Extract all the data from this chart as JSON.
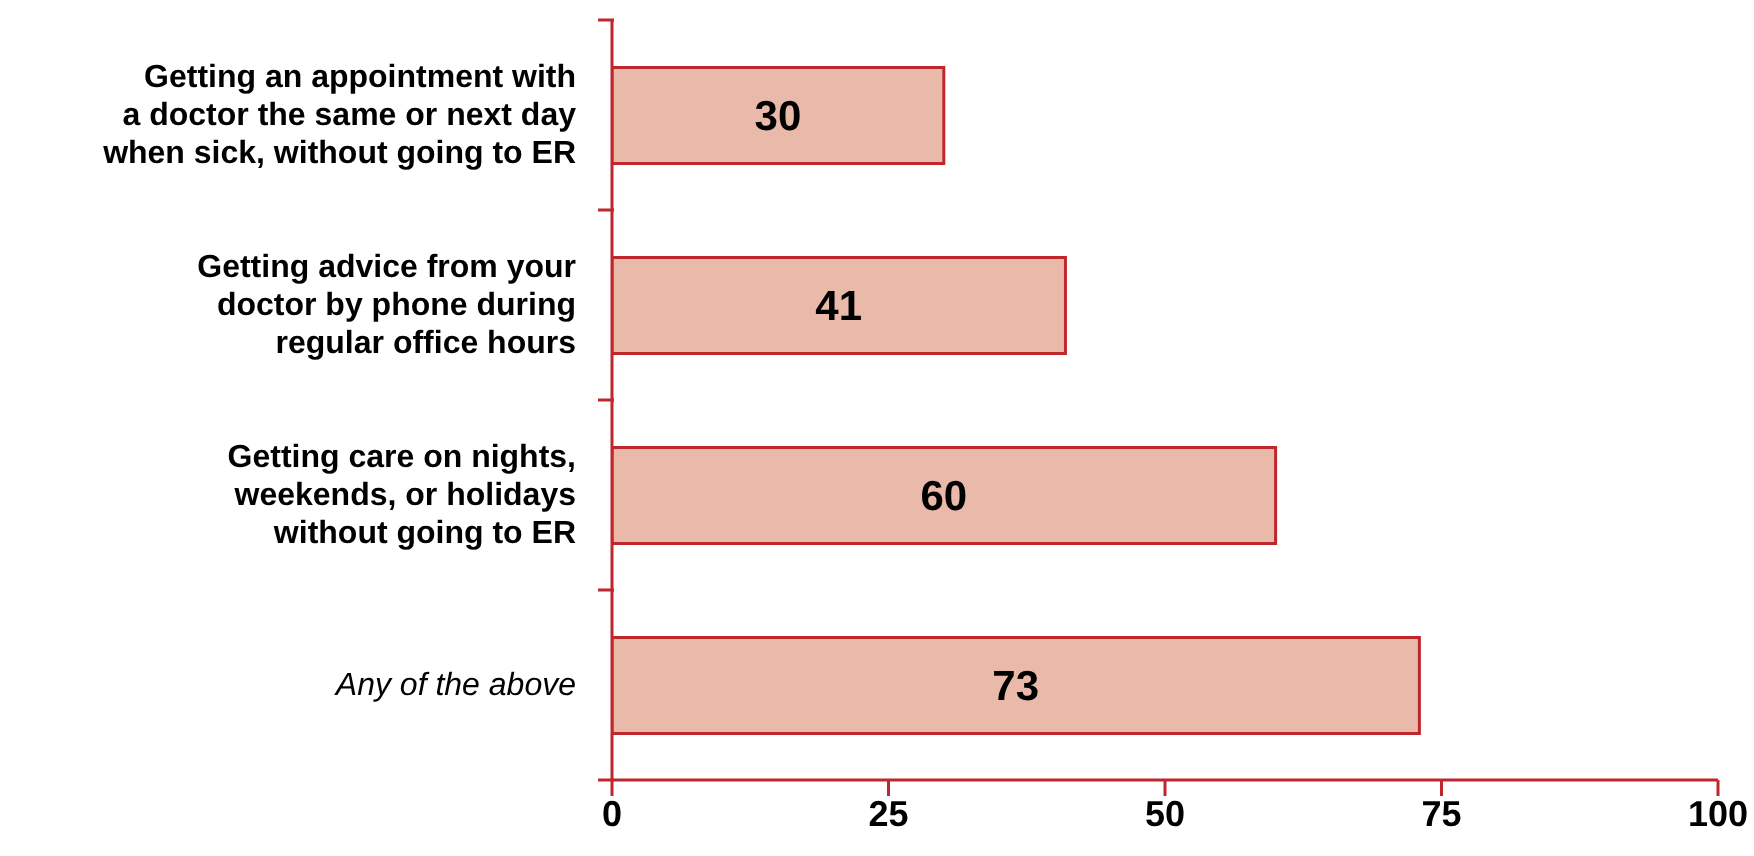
{
  "chart_data": {
    "type": "bar",
    "orientation": "horizontal",
    "categories": [
      "Getting an appointment with\na doctor the same or next day\nwhen sick, without going to ER",
      "Getting advice from your\ndoctor by phone during\nregular office hours",
      "Getting care on nights,\nweekends, or holidays\nwithout going to ER",
      "Any of the above"
    ],
    "values": [
      30,
      41,
      60,
      73
    ],
    "color": "#e9b9a9",
    "xlim": [
      0,
      100
    ],
    "xticks": [
      0,
      25,
      50,
      75,
      100
    ],
    "data_labels": true
  }
}
